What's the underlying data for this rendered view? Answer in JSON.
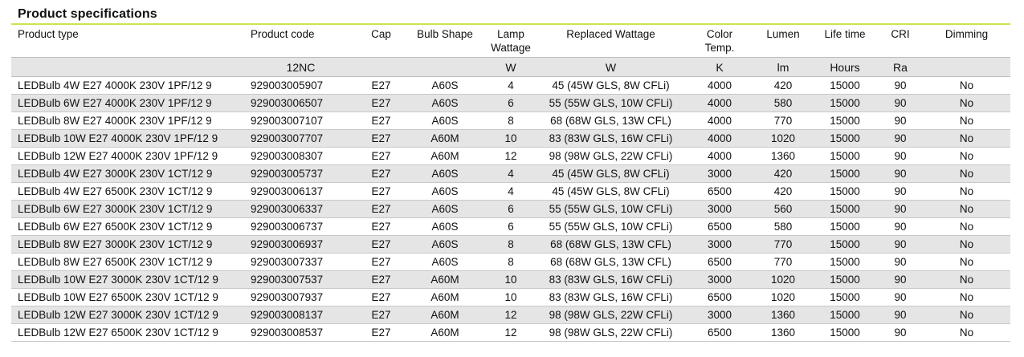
{
  "section_title": "Product specifications",
  "accent_color": "#cfe24a",
  "columns": [
    "Product type",
    "Product code",
    "Cap",
    "Bulb Shape",
    "Lamp\nWattage",
    "Replaced Wattage",
    "Color\nTemp.",
    "Lumen",
    "Life time",
    "CRI",
    "Dimming"
  ],
  "units": [
    "",
    "12NC",
    "",
    "",
    "W",
    "W",
    "K",
    "lm",
    "Hours",
    "Ra",
    ""
  ],
  "rows": [
    [
      "LEDBulb 4W E27 4000K 230V 1PF/12 9",
      "929003005907",
      "E27",
      "A60S",
      "4",
      "45 (45W GLS, 8W CFLi)",
      "4000",
      "420",
      "15000",
      "90",
      "No"
    ],
    [
      "LEDBulb 6W E27 4000K 230V 1PF/12 9",
      "929003006507",
      "E27",
      "A60S",
      "6",
      "55 (55W GLS, 10W CFLi)",
      "4000",
      "580",
      "15000",
      "90",
      "No"
    ],
    [
      "LEDBulb 8W E27 4000K 230V 1PF/12 9",
      "929003007107",
      "E27",
      "A60S",
      "8",
      "68 (68W GLS, 13W CFL)",
      "4000",
      "770",
      "15000",
      "90",
      "No"
    ],
    [
      "LEDBulb 10W E27 4000K 230V 1PF/12 9",
      "929003007707",
      "E27",
      "A60M",
      "10",
      "83 (83W GLS, 16W CFLi)",
      "4000",
      "1020",
      "15000",
      "90",
      "No"
    ],
    [
      "LEDBulb 12W E27 4000K 230V 1PF/12 9",
      "929003008307",
      "E27",
      "A60M",
      "12",
      "98 (98W GLS, 22W CFLi)",
      "4000",
      "1360",
      "15000",
      "90",
      "No"
    ],
    [
      "LEDBulb 4W E27 3000K 230V 1CT/12 9",
      "929003005737",
      "E27",
      "A60S",
      "4",
      "45 (45W GLS, 8W CFLi)",
      "3000",
      "420",
      "15000",
      "90",
      "No"
    ],
    [
      "LEDBulb 4W E27 6500K 230V 1CT/12 9",
      "929003006137",
      "E27",
      "A60S",
      "4",
      "45 (45W GLS, 8W CFLi)",
      "6500",
      "420",
      "15000",
      "90",
      "No"
    ],
    [
      "LEDBulb 6W E27 3000K 230V 1CT/12 9",
      "929003006337",
      "E27",
      "A60S",
      "6",
      "55 (55W GLS, 10W CFLi)",
      "3000",
      "560",
      "15000",
      "90",
      "No"
    ],
    [
      "LEDBulb 6W E27 6500K 230V 1CT/12 9",
      "929003006737",
      "E27",
      "A60S",
      "6",
      "55 (55W GLS, 10W CFLi)",
      "6500",
      "580",
      "15000",
      "90",
      "No"
    ],
    [
      "LEDBulb 8W E27 3000K 230V 1CT/12 9",
      "929003006937",
      "E27",
      "A60S",
      "8",
      "68 (68W GLS, 13W CFL)",
      "3000",
      "770",
      "15000",
      "90",
      "No"
    ],
    [
      "LEDBulb 8W E27 6500K 230V 1CT/12 9",
      "929003007337",
      "E27",
      "A60S",
      "8",
      "68 (68W GLS, 13W CFL)",
      "6500",
      "770",
      "15000",
      "90",
      "No"
    ],
    [
      "LEDBulb 10W E27 3000K 230V 1CT/12 9",
      "929003007537",
      "E27",
      "A60M",
      "10",
      "83 (83W GLS, 16W CFLi)",
      "3000",
      "1020",
      "15000",
      "90",
      "No"
    ],
    [
      "LEDBulb 10W E27 6500K 230V 1CT/12 9",
      "929003007937",
      "E27",
      "A60M",
      "10",
      "83 (83W GLS, 16W CFLi)",
      "6500",
      "1020",
      "15000",
      "90",
      "No"
    ],
    [
      "LEDBulb 12W E27 3000K 230V 1CT/12 9",
      "929003008137",
      "E27",
      "A60M",
      "12",
      "98 (98W GLS, 22W CFLi)",
      "3000",
      "1360",
      "15000",
      "90",
      "No"
    ],
    [
      "LEDBulb 12W E27 6500K 230V 1CT/12 9",
      "929003008537",
      "E27",
      "A60M",
      "12",
      "98 (98W GLS, 22W CFLi)",
      "6500",
      "1360",
      "15000",
      "90",
      "No"
    ]
  ]
}
